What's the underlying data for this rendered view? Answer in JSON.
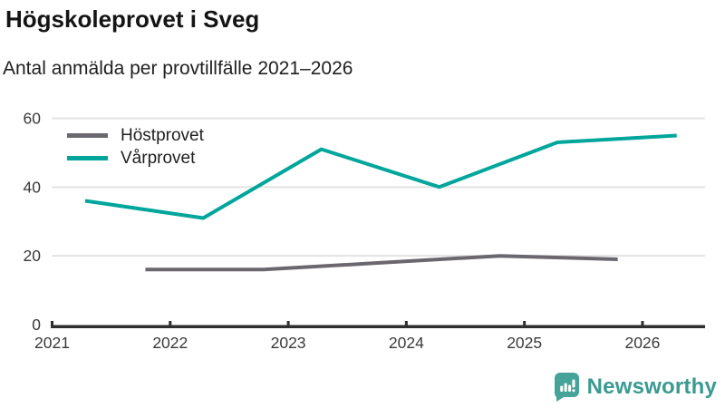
{
  "chart_data": {
    "type": "line",
    "title": "Högskoleprovet i Sveg",
    "subtitle": "Antal anmälda per provtillfälle 2021–2026",
    "xlabel": "",
    "ylabel": "",
    "xlim": [
      2021,
      2026.53
    ],
    "ylim": [
      0,
      60
    ],
    "x_ticks": [
      {
        "value": 2021,
        "label": "2021"
      },
      {
        "value": 2022,
        "label": "2022"
      },
      {
        "value": 2023,
        "label": "2023"
      },
      {
        "value": 2024,
        "label": "2024"
      },
      {
        "value": 2025,
        "label": "2025"
      },
      {
        "value": 2026,
        "label": "2026"
      }
    ],
    "y_ticks": [
      {
        "value": 0,
        "label": "0"
      },
      {
        "value": 20,
        "label": "20"
      },
      {
        "value": 40,
        "label": "40"
      },
      {
        "value": 60,
        "label": "60"
      }
    ],
    "grid": "horizontal",
    "legend_position": "top-left-inside",
    "series": [
      {
        "name": "Höstprovet",
        "color": "#6a676e",
        "points": [
          {
            "x": 2021.79,
            "y": 16
          },
          {
            "x": 2022.79,
            "y": 16
          },
          {
            "x": 2023.79,
            "y": 18
          },
          {
            "x": 2024.79,
            "y": 20
          },
          {
            "x": 2025.79,
            "y": 19
          }
        ]
      },
      {
        "name": "Vårprovet",
        "color": "#00a69b",
        "points": [
          {
            "x": 2021.28,
            "y": 36
          },
          {
            "x": 2022.28,
            "y": 31
          },
          {
            "x": 2023.28,
            "y": 51
          },
          {
            "x": 2024.28,
            "y": 40
          },
          {
            "x": 2025.28,
            "y": 53
          },
          {
            "x": 2026.29,
            "y": 55
          }
        ]
      }
    ],
    "colors": {
      "axis": "#2f2f2f",
      "grid": "#e3e3e3",
      "tick_label": "#3a3a3a",
      "title": "#141414",
      "subtitle": "#202020"
    }
  },
  "branding": {
    "logo_text": "Newsworthy",
    "logo_icon_color": "#45a399",
    "logo_text_color": "#3a9a92"
  }
}
